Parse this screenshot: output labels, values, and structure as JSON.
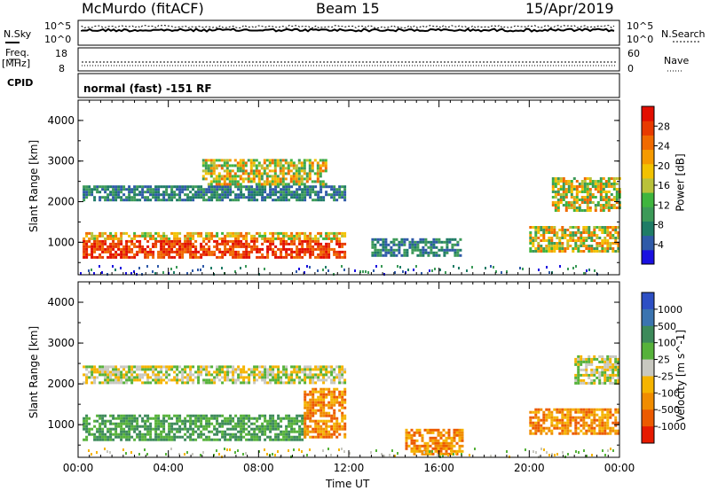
{
  "header": {
    "station": "McMurdo (fitACF)",
    "beam": "Beam 15",
    "date": "15/Apr/2019"
  },
  "status_strip": {
    "nsky_label": "N.Sky",
    "nsearch_label": "N.Search",
    "freq_label": "Freq.",
    "freq_unit": "[MHz]",
    "nave_label": "Nave",
    "cpid_label": "CPID",
    "cpid_text": "normal (fast) -151 RF",
    "noise_ticks": [
      "10^5",
      "10^0"
    ],
    "freq_ticks": [
      "18",
      "8"
    ],
    "nave_ticks": [
      "60",
      "0"
    ]
  },
  "chart_data": [
    {
      "type": "heatmap",
      "title": "",
      "ylabel": "Slant Range [km]",
      "xlabel": "",
      "xlim": [
        0,
        24
      ],
      "ylim": [
        200,
        4500
      ],
      "yticks": [
        "1000",
        "2000",
        "3000",
        "4000"
      ],
      "colorbar": {
        "label": "Power [dB]",
        "ticks": [
          "4",
          "8",
          "12",
          "16",
          "20",
          "24",
          "28"
        ],
        "colors": [
          "#1a10e0",
          "#2f5aa8",
          "#1f7c66",
          "#3c9a58",
          "#3fb53e",
          "#b9c23a",
          "#f2c200",
          "#f59a00",
          "#f06a00",
          "#e83a00",
          "#e20e00"
        ]
      },
      "regions": [
        {
          "t": [
            0.2,
            11.8
          ],
          "r": [
            650,
            1250
          ],
          "level": "high"
        },
        {
          "t": [
            0.2,
            11.8
          ],
          "r": [
            2050,
            2400
          ],
          "level": "low"
        },
        {
          "t": [
            5.5,
            11.0
          ],
          "r": [
            2400,
            3050
          ],
          "level": "mid"
        },
        {
          "t": [
            13.0,
            17.0
          ],
          "r": [
            650,
            1100
          ],
          "level": "low"
        },
        {
          "t": [
            20.0,
            24.0
          ],
          "r": [
            800,
            1400
          ],
          "level": "mid"
        },
        {
          "t": [
            21.0,
            24.0
          ],
          "r": [
            1800,
            2600
          ],
          "level": "mid"
        }
      ]
    },
    {
      "type": "heatmap",
      "title": "",
      "ylabel": "Slant Range [km]",
      "xlabel": "Time UT",
      "xlim": [
        0,
        24
      ],
      "ylim": [
        200,
        4500
      ],
      "yticks": [
        "1000",
        "2000",
        "3000",
        "4000"
      ],
      "xticks": [
        "00:00",
        "04:00",
        "08:00",
        "12:00",
        "16:00",
        "20:00",
        "00:00"
      ],
      "colorbar": {
        "label": "Velocity [m s^-1]",
        "ticks": [
          "1000",
          "500",
          "100",
          "25",
          "-25",
          "-100",
          "-500",
          "-1000"
        ],
        "colors": [
          "#2d4fc4",
          "#3b74b0",
          "#3d8a5a",
          "#56b23a",
          "#c8c8c0",
          "#f5b400",
          "#f08c00",
          "#ec5a00",
          "#e61a00"
        ]
      },
      "regions": [
        {
          "t": [
            0.2,
            10.0
          ],
          "r": [
            600,
            1250
          ],
          "level": "positive"
        },
        {
          "t": [
            10.0,
            11.8
          ],
          "r": [
            700,
            1900
          ],
          "level": "negative"
        },
        {
          "t": [
            0.2,
            11.8
          ],
          "r": [
            2000,
            2450
          ],
          "level": "near-zero"
        },
        {
          "t": [
            14.5,
            17.0
          ],
          "r": [
            300,
            900
          ],
          "level": "negative"
        },
        {
          "t": [
            20.0,
            24.0
          ],
          "r": [
            800,
            1400
          ],
          "level": "negative"
        },
        {
          "t": [
            22.0,
            24.0
          ],
          "r": [
            2000,
            2700
          ],
          "level": "near-zero"
        }
      ]
    }
  ]
}
